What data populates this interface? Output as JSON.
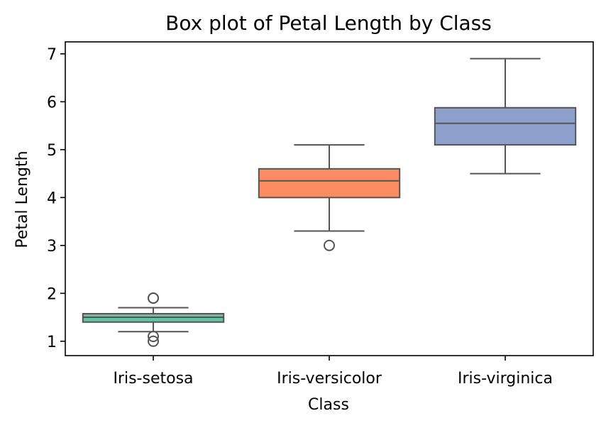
{
  "chart_data": {
    "type": "box",
    "title": "Box plot of Petal Length by Class",
    "xlabel": "Class",
    "ylabel": "Petal Length",
    "ylim": [
      0.7,
      7.25
    ],
    "yticks": [
      1,
      2,
      3,
      4,
      5,
      6,
      7
    ],
    "grid": false,
    "categories": [
      "Iris-setosa",
      "Iris-versicolor",
      "Iris-virginica"
    ],
    "boxes": [
      {
        "category": "Iris-setosa",
        "whisker_low": 1.2,
        "q1": 1.4,
        "median": 1.5,
        "q3": 1.575,
        "whisker_high": 1.7,
        "outliers": [
          1.0,
          1.1,
          1.9,
          1.9
        ],
        "color": "#66c2a5"
      },
      {
        "category": "Iris-versicolor",
        "whisker_low": 3.3,
        "q1": 4.0,
        "median": 4.35,
        "q3": 4.6,
        "whisker_high": 5.1,
        "outliers": [
          3.0
        ],
        "color": "#fc8d62"
      },
      {
        "category": "Iris-virginica",
        "whisker_low": 4.5,
        "q1": 5.1,
        "median": 5.55,
        "q3": 5.875,
        "whisker_high": 6.9,
        "outliers": [],
        "color": "#8da0cb"
      }
    ],
    "line_color": "#555555"
  }
}
